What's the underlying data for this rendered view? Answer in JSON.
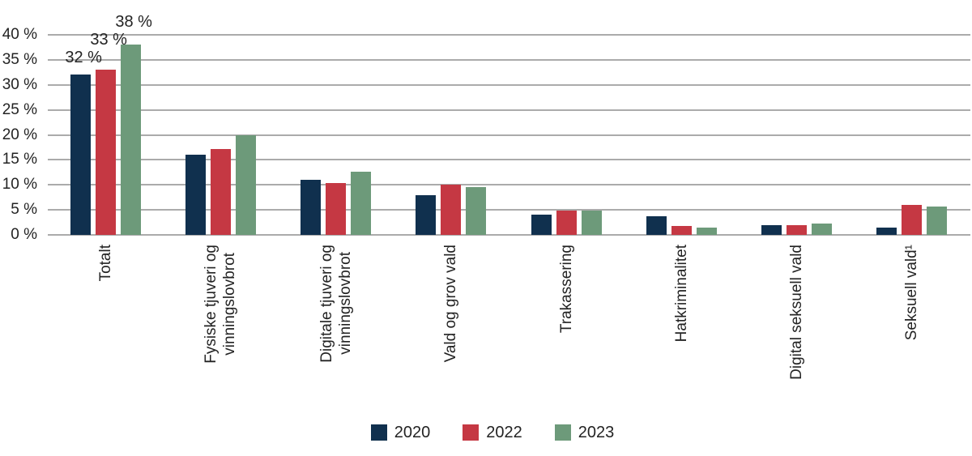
{
  "chart_data": {
    "type": "bar",
    "title": "",
    "categories": [
      "Totalt",
      "Fysiske tjuveri og vinningslovbrot",
      "Digitale tjuveri og vinningslovbrot",
      "Vald og grov vald",
      "Trakassering",
      "Hatkriminalitet",
      "Digital seksuell vald",
      "Seksuell vald¹"
    ],
    "category_label_lines": [
      [
        "Totalt"
      ],
      [
        "Fysiske tjuveri og",
        "vinningslovbrot"
      ],
      [
        "Digitale tjuveri og",
        "vinningslovbrot"
      ],
      [
        "Vald og grov vald"
      ],
      [
        "Trakassering"
      ],
      [
        "Hatkriminalitet"
      ],
      [
        "Digital seksuell vald"
      ],
      [
        "Seksuell vald¹"
      ]
    ],
    "series": [
      {
        "name": "2020",
        "color": "#10304e",
        "values": [
          32,
          16,
          11,
          8,
          4,
          3.7,
          1.9,
          1.5
        ]
      },
      {
        "name": "2022",
        "color": "#c53843",
        "values": [
          33,
          17.2,
          10.4,
          10,
          4.9,
          1.8,
          1.9,
          6
        ]
      },
      {
        "name": "2023",
        "color": "#6d9a7a",
        "values": [
          38,
          20,
          12.7,
          9.5,
          4.8,
          1.5,
          2.2,
          5.7
        ]
      }
    ],
    "data_labels": [
      {
        "category_index": 0,
        "labels": [
          "32 %",
          "33 %",
          "38 %"
        ]
      }
    ],
    "y_axis": {
      "min": 0,
      "max": 40,
      "step": 5,
      "ticks": [
        "0 %",
        "5 %",
        "10 %",
        "15 %",
        "20 %",
        "25 %",
        "30 %",
        "35 %",
        "40 %"
      ]
    },
    "xlabel": "",
    "ylabel": "",
    "ylim": [
      0,
      40
    ],
    "grid": true,
    "legend_position": "bottom",
    "colors": {
      "background": "#ffffff",
      "gridline": "#ababab",
      "text": "#232323"
    }
  }
}
